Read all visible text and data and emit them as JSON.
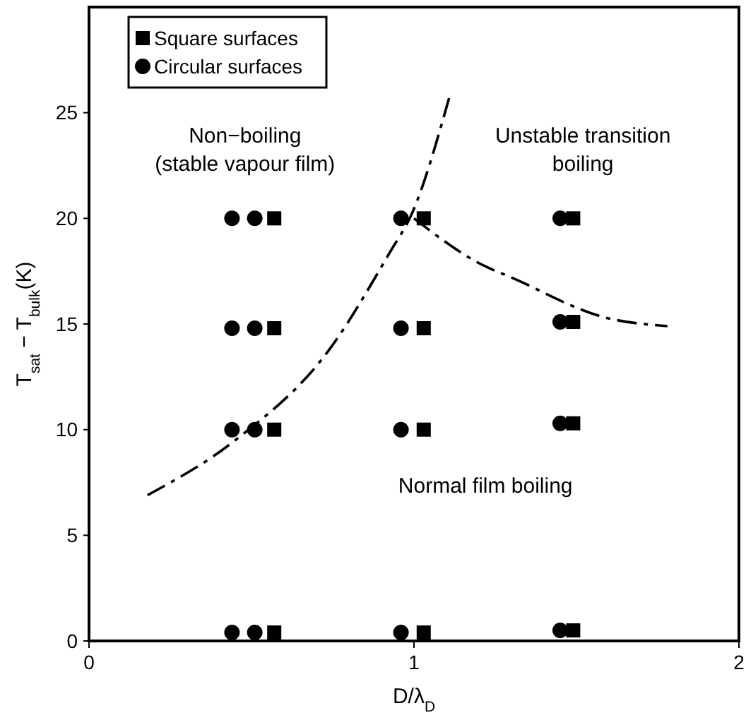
{
  "chart_data": {
    "type": "scatter",
    "xlabel": "D/λ$_{D}$",
    "ylabel": "T$_{sat}$ − T$_{bulk}$(K)",
    "xlim": [
      0,
      2
    ],
    "ylim": [
      0,
      30
    ],
    "xticks": [
      0,
      1,
      2
    ],
    "yticks": [
      0,
      5,
      10,
      15,
      20,
      25
    ],
    "grid": false,
    "legend": "top left",
    "annotations": [
      "Non−boiling\n(stable vapour film)",
      "Unstable transition\nboiling",
      "Normal film boiling"
    ],
    "series": [
      {
        "name": "Square surfaces",
        "color": "#000000",
        "marker": "square",
        "x": [
          0.57,
          0.57,
          0.57,
          0.57,
          1.03,
          1.03,
          1.03,
          1.03,
          1.49,
          1.49,
          1.49,
          1.49
        ],
        "values": [
          0.4,
          10,
          14.8,
          20,
          0.4,
          10,
          14.8,
          20,
          0.5,
          10.3,
          15.1,
          20
        ]
      },
      {
        "name": "Circular surfaces",
        "color": "#000000",
        "marker": "circle",
        "x": [
          0.44,
          0.51,
          0.44,
          0.51,
          0.44,
          0.51,
          0.44,
          0.51,
          0.96,
          0.96,
          0.96,
          0.96,
          1.45,
          1.45,
          1.45,
          1.45
        ],
        "values": [
          0.4,
          0.4,
          10,
          10,
          14.8,
          14.8,
          20,
          20,
          0.4,
          10,
          14.8,
          20,
          0.5,
          10.3,
          15.1,
          20
        ]
      },
      {
        "type": "line",
        "color": "#000000",
        "line_style": "dashed",
        "marker": "none",
        "x": [
          0.18,
          0.45,
          0.74,
          0.93,
          0.99,
          1.11
        ],
        "values": [
          6.9,
          9.5,
          13.8,
          18.5,
          20.1,
          25.8
        ]
      },
      {
        "type": "line",
        "color": "#000000",
        "line_style": "dashed",
        "marker": "none",
        "x": [
          1.0,
          1.21,
          1.3,
          1.59,
          1.78
        ],
        "values": [
          20,
          17.8,
          17.2,
          15.3,
          14.9
        ]
      }
    ]
  }
}
